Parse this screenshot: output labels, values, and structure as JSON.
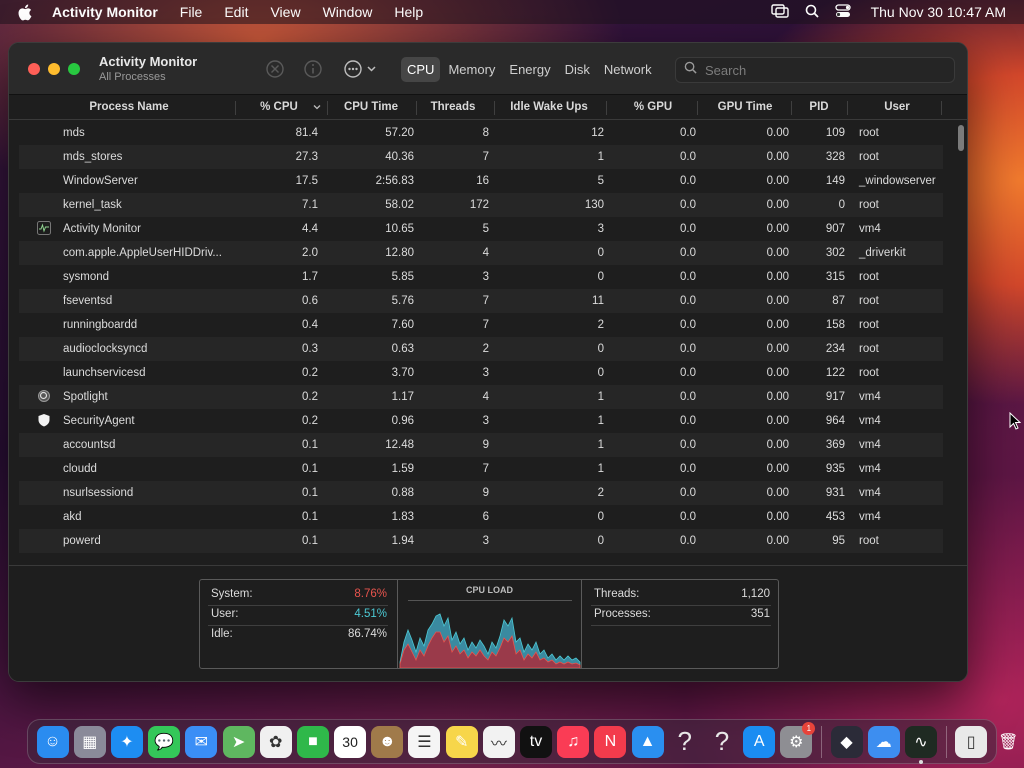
{
  "menubar": {
    "app_name": "Activity Monitor",
    "menus": [
      "File",
      "Edit",
      "View",
      "Window",
      "Help"
    ],
    "clock": "Thu Nov 30  10:47 AM"
  },
  "window": {
    "title": "Activity Monitor",
    "subtitle": "All Processes",
    "tabs": [
      "CPU",
      "Memory",
      "Energy",
      "Disk",
      "Network"
    ],
    "active_tab": "CPU",
    "search_placeholder": "Search"
  },
  "table": {
    "columns": [
      "Process Name",
      "% CPU",
      "CPU Time",
      "Threads",
      "Idle Wake Ups",
      "% GPU",
      "GPU Time",
      "PID",
      "User"
    ],
    "sort_column": "% CPU",
    "rows": [
      {
        "name": "mds",
        "icon": "",
        "cpu": "81.4",
        "time": "57.20",
        "threads": "8",
        "idle": "12",
        "gpu": "0.0",
        "gtime": "0.00",
        "pid": "109",
        "user": "root"
      },
      {
        "name": "mds_stores",
        "icon": "",
        "cpu": "27.3",
        "time": "40.36",
        "threads": "7",
        "idle": "1",
        "gpu": "0.0",
        "gtime": "0.00",
        "pid": "328",
        "user": "root"
      },
      {
        "name": "WindowServer",
        "icon": "",
        "cpu": "17.5",
        "time": "2:56.83",
        "threads": "16",
        "idle": "5",
        "gpu": "0.0",
        "gtime": "0.00",
        "pid": "149",
        "user": "_windowserver"
      },
      {
        "name": "kernel_task",
        "icon": "",
        "cpu": "7.1",
        "time": "58.02",
        "threads": "172",
        "idle": "130",
        "gpu": "0.0",
        "gtime": "0.00",
        "pid": "0",
        "user": "root"
      },
      {
        "name": "Activity Monitor",
        "icon": "activity-monitor-icon",
        "cpu": "4.4",
        "time": "10.65",
        "threads": "5",
        "idle": "3",
        "gpu": "0.0",
        "gtime": "0.00",
        "pid": "907",
        "user": "vm4"
      },
      {
        "name": "com.apple.AppleUserHIDDriv...",
        "icon": "",
        "cpu": "2.0",
        "time": "12.80",
        "threads": "4",
        "idle": "0",
        "gpu": "0.0",
        "gtime": "0.00",
        "pid": "302",
        "user": "_driverkit"
      },
      {
        "name": "sysmond",
        "icon": "",
        "cpu": "1.7",
        "time": "5.85",
        "threads": "3",
        "idle": "0",
        "gpu": "0.0",
        "gtime": "0.00",
        "pid": "315",
        "user": "root"
      },
      {
        "name": "fseventsd",
        "icon": "",
        "cpu": "0.6",
        "time": "5.76",
        "threads": "7",
        "idle": "11",
        "gpu": "0.0",
        "gtime": "0.00",
        "pid": "87",
        "user": "root"
      },
      {
        "name": "runningboardd",
        "icon": "",
        "cpu": "0.4",
        "time": "7.60",
        "threads": "7",
        "idle": "2",
        "gpu": "0.0",
        "gtime": "0.00",
        "pid": "158",
        "user": "root"
      },
      {
        "name": "audioclocksyncd",
        "icon": "",
        "cpu": "0.3",
        "time": "0.63",
        "threads": "2",
        "idle": "0",
        "gpu": "0.0",
        "gtime": "0.00",
        "pid": "234",
        "user": "root"
      },
      {
        "name": "launchservicesd",
        "icon": "",
        "cpu": "0.2",
        "time": "3.70",
        "threads": "3",
        "idle": "0",
        "gpu": "0.0",
        "gtime": "0.00",
        "pid": "122",
        "user": "root"
      },
      {
        "name": "Spotlight",
        "icon": "spotlight-icon",
        "cpu": "0.2",
        "time": "1.17",
        "threads": "4",
        "idle": "1",
        "gpu": "0.0",
        "gtime": "0.00",
        "pid": "917",
        "user": "vm4"
      },
      {
        "name": "SecurityAgent",
        "icon": "shield-icon",
        "cpu": "0.2",
        "time": "0.96",
        "threads": "3",
        "idle": "1",
        "gpu": "0.0",
        "gtime": "0.00",
        "pid": "964",
        "user": "vm4"
      },
      {
        "name": "accountsd",
        "icon": "",
        "cpu": "0.1",
        "time": "12.48",
        "threads": "9",
        "idle": "1",
        "gpu": "0.0",
        "gtime": "0.00",
        "pid": "369",
        "user": "vm4"
      },
      {
        "name": "cloudd",
        "icon": "",
        "cpu": "0.1",
        "time": "1.59",
        "threads": "7",
        "idle": "1",
        "gpu": "0.0",
        "gtime": "0.00",
        "pid": "935",
        "user": "vm4"
      },
      {
        "name": "nsurlsessiond",
        "icon": "",
        "cpu": "0.1",
        "time": "0.88",
        "threads": "9",
        "idle": "2",
        "gpu": "0.0",
        "gtime": "0.00",
        "pid": "931",
        "user": "vm4"
      },
      {
        "name": "akd",
        "icon": "",
        "cpu": "0.1",
        "time": "1.83",
        "threads": "6",
        "idle": "0",
        "gpu": "0.0",
        "gtime": "0.00",
        "pid": "453",
        "user": "vm4"
      },
      {
        "name": "powerd",
        "icon": "",
        "cpu": "0.1",
        "time": "1.94",
        "threads": "3",
        "idle": "0",
        "gpu": "0.0",
        "gtime": "0.00",
        "pid": "95",
        "user": "root"
      }
    ]
  },
  "cpu_summary": {
    "system_label": "System:",
    "system_value": "8.76%",
    "user_label": "User:",
    "user_value": "4.51%",
    "idle_label": "Idle:",
    "idle_value": "86.74%",
    "graph_title": "CPU LOAD",
    "threads_label": "Threads:",
    "threads_value": "1,120",
    "processes_label": "Processes:",
    "processes_value": "351",
    "colors": {
      "system": "#e8544d",
      "user": "#4cc9d4"
    }
  },
  "dock": {
    "apps": [
      {
        "name": "finder-icon",
        "color": "#2a8cf0",
        "glyph": "☺"
      },
      {
        "name": "launchpad-icon",
        "color": "#8a8a99",
        "glyph": "▦"
      },
      {
        "name": "safari-icon",
        "color": "#1d8df2",
        "glyph": "✦"
      },
      {
        "name": "messages-icon",
        "color": "#34c759",
        "glyph": "💬"
      },
      {
        "name": "mail-icon",
        "color": "#3a8ef6",
        "glyph": "✉"
      },
      {
        "name": "maps-icon",
        "color": "#5fb760",
        "glyph": "➤"
      },
      {
        "name": "photos-icon",
        "color": "#f0f0f0",
        "glyph": "✿"
      },
      {
        "name": "facetime-icon",
        "color": "#2fb84a",
        "glyph": "■"
      },
      {
        "name": "calendar-icon",
        "color": "#ffffff",
        "glyph": "30"
      },
      {
        "name": "contacts-icon",
        "color": "#a07a4a",
        "glyph": "☻"
      },
      {
        "name": "reminders-icon",
        "color": "#f5f5f5",
        "glyph": "☰"
      },
      {
        "name": "notes-icon",
        "color": "#f7d64a",
        "glyph": "✎"
      },
      {
        "name": "freeform-icon",
        "color": "#f2f2f2",
        "glyph": "〰"
      },
      {
        "name": "apple-tv-icon",
        "color": "#111111",
        "glyph": "tv"
      },
      {
        "name": "music-icon",
        "color": "#fa3c55",
        "glyph": "♫"
      },
      {
        "name": "news-icon",
        "color": "#f33b4c",
        "glyph": "N"
      },
      {
        "name": "keynote-icon",
        "color": "#2a8ff0",
        "glyph": "▲"
      },
      {
        "name": "unknown-app-icon",
        "color": "transparent",
        "glyph": "?"
      },
      {
        "name": "unknown-app-icon",
        "color": "transparent",
        "glyph": "?"
      },
      {
        "name": "app-store-icon",
        "color": "#1a8cf2",
        "glyph": "A"
      },
      {
        "name": "system-settings-icon",
        "color": "#8e8e93",
        "glyph": "⚙",
        "badge": "1"
      }
    ],
    "recent": [
      {
        "name": "visual-studio-icon",
        "color": "#2b2b38",
        "glyph": "◆"
      },
      {
        "name": "weather-icon",
        "color": "#3d8ef0",
        "glyph": "☁"
      },
      {
        "name": "activity-monitor-icon",
        "color": "#1f2a22",
        "glyph": "∿",
        "running": true
      }
    ],
    "trailing": [
      {
        "name": "downloads-icon",
        "color": "#e9e9e9",
        "glyph": "▯"
      },
      {
        "name": "trash-icon",
        "color": "transparent",
        "glyph": "🗑"
      }
    ]
  }
}
